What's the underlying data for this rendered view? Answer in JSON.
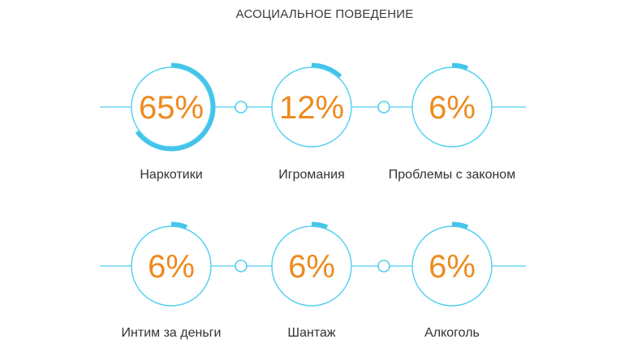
{
  "title": "АСОЦИАЛЬНОЕ ПОВЕДЕНИЕ",
  "colors": {
    "ring": "#4fcfef",
    "progress": "#45c4ea",
    "percent_text": "#ee8a1e",
    "label_text": "#333333"
  },
  "chart_data": {
    "type": "progress-rings",
    "title": "АСОЦИАЛЬНОЕ ПОВЕДЕНИЕ",
    "unit": "%",
    "items": [
      {
        "label": "Наркотики",
        "value": 65,
        "value_text": "65%"
      },
      {
        "label": "Игромания",
        "value": 12,
        "value_text": "12%"
      },
      {
        "label": "Проблемы с законом",
        "value": 6,
        "value_text": "6%"
      },
      {
        "label": "Интим за деньги",
        "value": 6,
        "value_text": "6%"
      },
      {
        "label": "Шантаж",
        "value": 6,
        "value_text": "6%"
      },
      {
        "label": "Алкоголь",
        "value": 6,
        "value_text": "6%"
      }
    ]
  }
}
